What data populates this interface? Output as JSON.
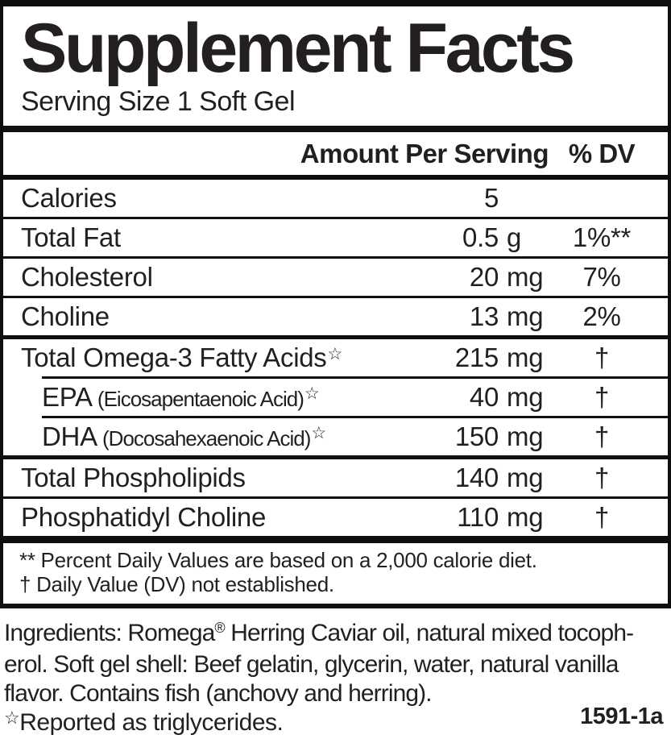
{
  "label": {
    "title": "Supplement Facts",
    "serving_size": "Serving Size 1 Soft Gel",
    "header": {
      "amount": "Amount Per Serving",
      "dv": "% DV"
    },
    "rows": [
      {
        "name": "Calories",
        "amount": "5",
        "unit": "",
        "dv": "",
        "sep": "none",
        "indent": false
      },
      {
        "name": "Total Fat",
        "amount": "0.5",
        "unit": "g",
        "dv": "1%**",
        "sep": "thin",
        "indent": false
      },
      {
        "name": "Cholesterol",
        "amount": "20",
        "unit": "mg",
        "dv": "7%",
        "sep": "thin",
        "indent": false
      },
      {
        "name": "Choline",
        "amount": "13",
        "unit": "mg",
        "dv": "2%",
        "sep": "thin",
        "indent": false
      },
      {
        "name": "Total Omega-3 Fatty Acids",
        "sup": "☆",
        "amount": "215",
        "unit": "mg",
        "dv": "†",
        "sep": "medium",
        "indent": false
      },
      {
        "name": "EPA",
        "paren": "(Eicosapentaenoic Acid)",
        "sup": "☆",
        "amount": "40",
        "unit": "mg",
        "dv": "†",
        "sep": "indent",
        "indent": true
      },
      {
        "name": "DHA",
        "paren": "(Docosahexaenoic Acid)",
        "sup": "☆",
        "amount": "150",
        "unit": "mg",
        "dv": "†",
        "sep": "indent",
        "indent": true
      },
      {
        "name": "Total Phospholipids",
        "amount": "140",
        "unit": "mg",
        "dv": "†",
        "sep": "medium",
        "indent": false
      },
      {
        "name": "Phosphatidyl Choline",
        "amount": "110",
        "unit": "mg",
        "dv": "†",
        "sep": "thin",
        "indent": false
      }
    ],
    "footnotes": [
      "** Percent Daily Values are based on a 2,000 calorie diet.",
      "† Daily Value (DV) not established."
    ]
  },
  "ingredients": {
    "lines": [
      {
        "parts": [
          {
            "t": "Ingredients: Romega"
          },
          {
            "t": "®",
            "sup": true
          },
          {
            "t": " Herring Caviar oil, natural mixed tocoph-"
          }
        ]
      },
      {
        "parts": [
          {
            "t": "erol. Soft gel shell: Beef gelatin, glycerin, water, natural vanilla"
          }
        ]
      },
      {
        "parts": [
          {
            "t": "flavor. Contains fish (anchovy and herring)."
          }
        ]
      }
    ]
  },
  "reported": {
    "star": "☆",
    "text": "Reported as triglycerides."
  },
  "code": "1591-1a",
  "colors": {
    "text": "#231f20",
    "border": "#0f0f0f",
    "background": "#ffffff"
  }
}
